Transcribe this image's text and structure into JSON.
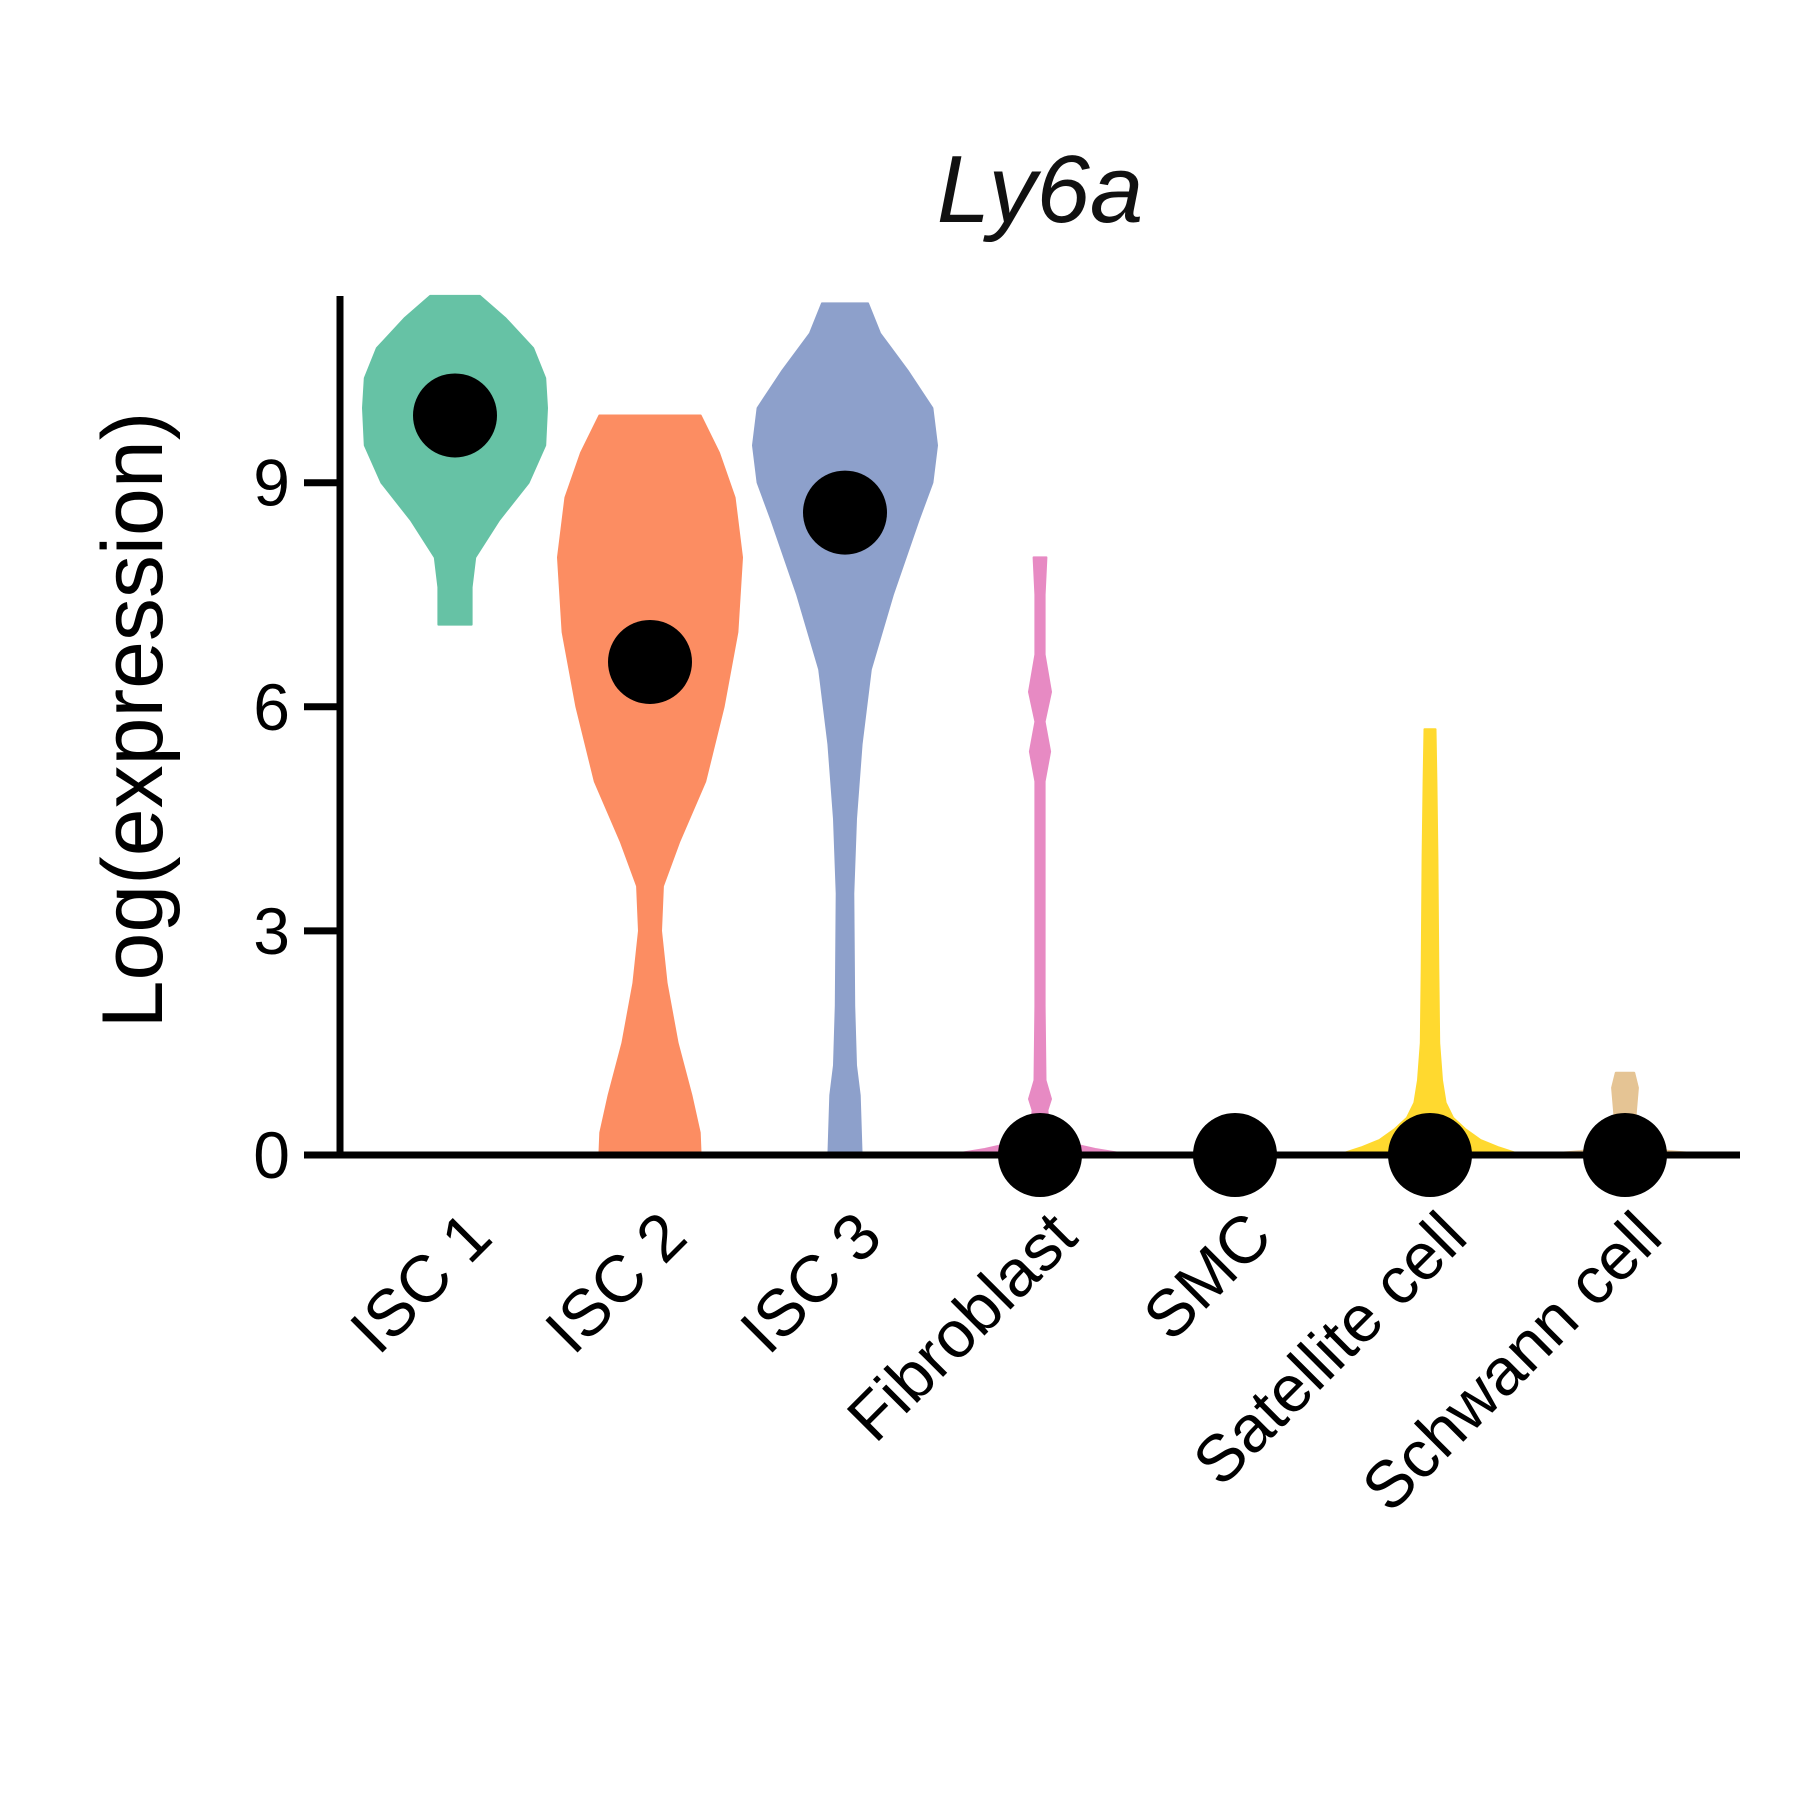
{
  "chart_data": {
    "type": "violin",
    "title": "Ly6a",
    "xlabel": "",
    "ylabel": "Log(expression)",
    "ylim": [
      0,
      11.5
    ],
    "yticks": [
      0,
      3,
      6,
      9
    ],
    "categories": [
      "ISC 1",
      "ISC 2",
      "ISC 3",
      "Fibroblast",
      "SMC",
      "Satellite cell",
      "Schwann cell"
    ],
    "colors": [
      "#66C2A5",
      "#FC8D62",
      "#8DA0CB",
      "#E78AC3",
      "#A6D854",
      "#FFD92F",
      "#E5C494"
    ],
    "series": [
      {
        "category": "ISC 1",
        "range": [
          7.1,
          11.5
        ],
        "median": 9.9,
        "profile": [
          [
            7.1,
            0.18
          ],
          [
            7.6,
            0.18
          ],
          [
            8.0,
            0.22
          ],
          [
            8.5,
            0.48
          ],
          [
            9.0,
            0.8
          ],
          [
            9.5,
            0.98
          ],
          [
            10.0,
            1.0
          ],
          [
            10.4,
            0.98
          ],
          [
            10.8,
            0.85
          ],
          [
            11.2,
            0.55
          ],
          [
            11.5,
            0.27
          ]
        ]
      },
      {
        "category": "ISC 2",
        "range": [
          0.0,
          9.9
        ],
        "median": 6.6,
        "profile": [
          [
            0.0,
            0.55
          ],
          [
            0.3,
            0.54
          ],
          [
            0.8,
            0.45
          ],
          [
            1.5,
            0.3
          ],
          [
            2.3,
            0.18
          ],
          [
            3.0,
            0.12
          ],
          [
            3.6,
            0.14
          ],
          [
            4.2,
            0.32
          ],
          [
            5.0,
            0.6
          ],
          [
            6.0,
            0.8
          ],
          [
            7.0,
            0.95
          ],
          [
            8.0,
            1.0
          ],
          [
            8.8,
            0.92
          ],
          [
            9.4,
            0.75
          ],
          [
            9.9,
            0.55
          ]
        ]
      },
      {
        "category": "ISC 3",
        "range": [
          0.0,
          11.4
        ],
        "median": 8.6,
        "profile": [
          [
            0.0,
            0.18
          ],
          [
            0.8,
            0.16
          ],
          [
            1.2,
            0.12
          ],
          [
            2.0,
            0.1
          ],
          [
            3.5,
            0.09
          ],
          [
            4.5,
            0.12
          ],
          [
            5.5,
            0.18
          ],
          [
            6.5,
            0.28
          ],
          [
            7.5,
            0.52
          ],
          [
            8.5,
            0.8
          ],
          [
            9.0,
            0.95
          ],
          [
            9.5,
            1.0
          ],
          [
            10.0,
            0.95
          ],
          [
            10.5,
            0.68
          ],
          [
            11.0,
            0.38
          ],
          [
            11.4,
            0.25
          ]
        ]
      },
      {
        "category": "Fibroblast",
        "range": [
          0.0,
          8.0
        ],
        "median": 0.0,
        "profile": [
          [
            0.0,
            1.0
          ],
          [
            0.08,
            0.6
          ],
          [
            0.15,
            0.35
          ],
          [
            0.3,
            0.1
          ],
          [
            0.6,
            0.08
          ],
          [
            0.75,
            0.12
          ],
          [
            1.0,
            0.06
          ],
          [
            2.0,
            0.05
          ],
          [
            3.0,
            0.05
          ],
          [
            4.0,
            0.05
          ],
          [
            5.0,
            0.05
          ],
          [
            5.4,
            0.11
          ],
          [
            5.8,
            0.05
          ],
          [
            6.2,
            0.12
          ],
          [
            6.7,
            0.05
          ],
          [
            7.5,
            0.05
          ],
          [
            8.0,
            0.07
          ]
        ]
      },
      {
        "category": "SMC",
        "range": [
          0.0,
          0.0
        ],
        "median": 0.0,
        "profile": []
      },
      {
        "category": "Satellite cell",
        "range": [
          0.0,
          5.7
        ],
        "median": 0.0,
        "profile": [
          [
            0.0,
            1.0
          ],
          [
            0.1,
            0.75
          ],
          [
            0.2,
            0.55
          ],
          [
            0.35,
            0.38
          ],
          [
            0.5,
            0.25
          ],
          [
            0.7,
            0.17
          ],
          [
            1.0,
            0.13
          ],
          [
            1.5,
            0.1
          ],
          [
            2.5,
            0.09
          ],
          [
            4.0,
            0.08
          ],
          [
            5.0,
            0.07
          ],
          [
            5.7,
            0.06
          ]
        ]
      },
      {
        "category": "Schwann cell",
        "range": [
          0.0,
          1.1
        ],
        "median": 0.0,
        "profile": [
          [
            0.0,
            1.0
          ],
          [
            0.05,
            0.5
          ],
          [
            0.12,
            0.18
          ],
          [
            0.3,
            0.1
          ],
          [
            0.6,
            0.12
          ],
          [
            0.9,
            0.14
          ],
          [
            1.1,
            0.1
          ]
        ]
      }
    ]
  }
}
